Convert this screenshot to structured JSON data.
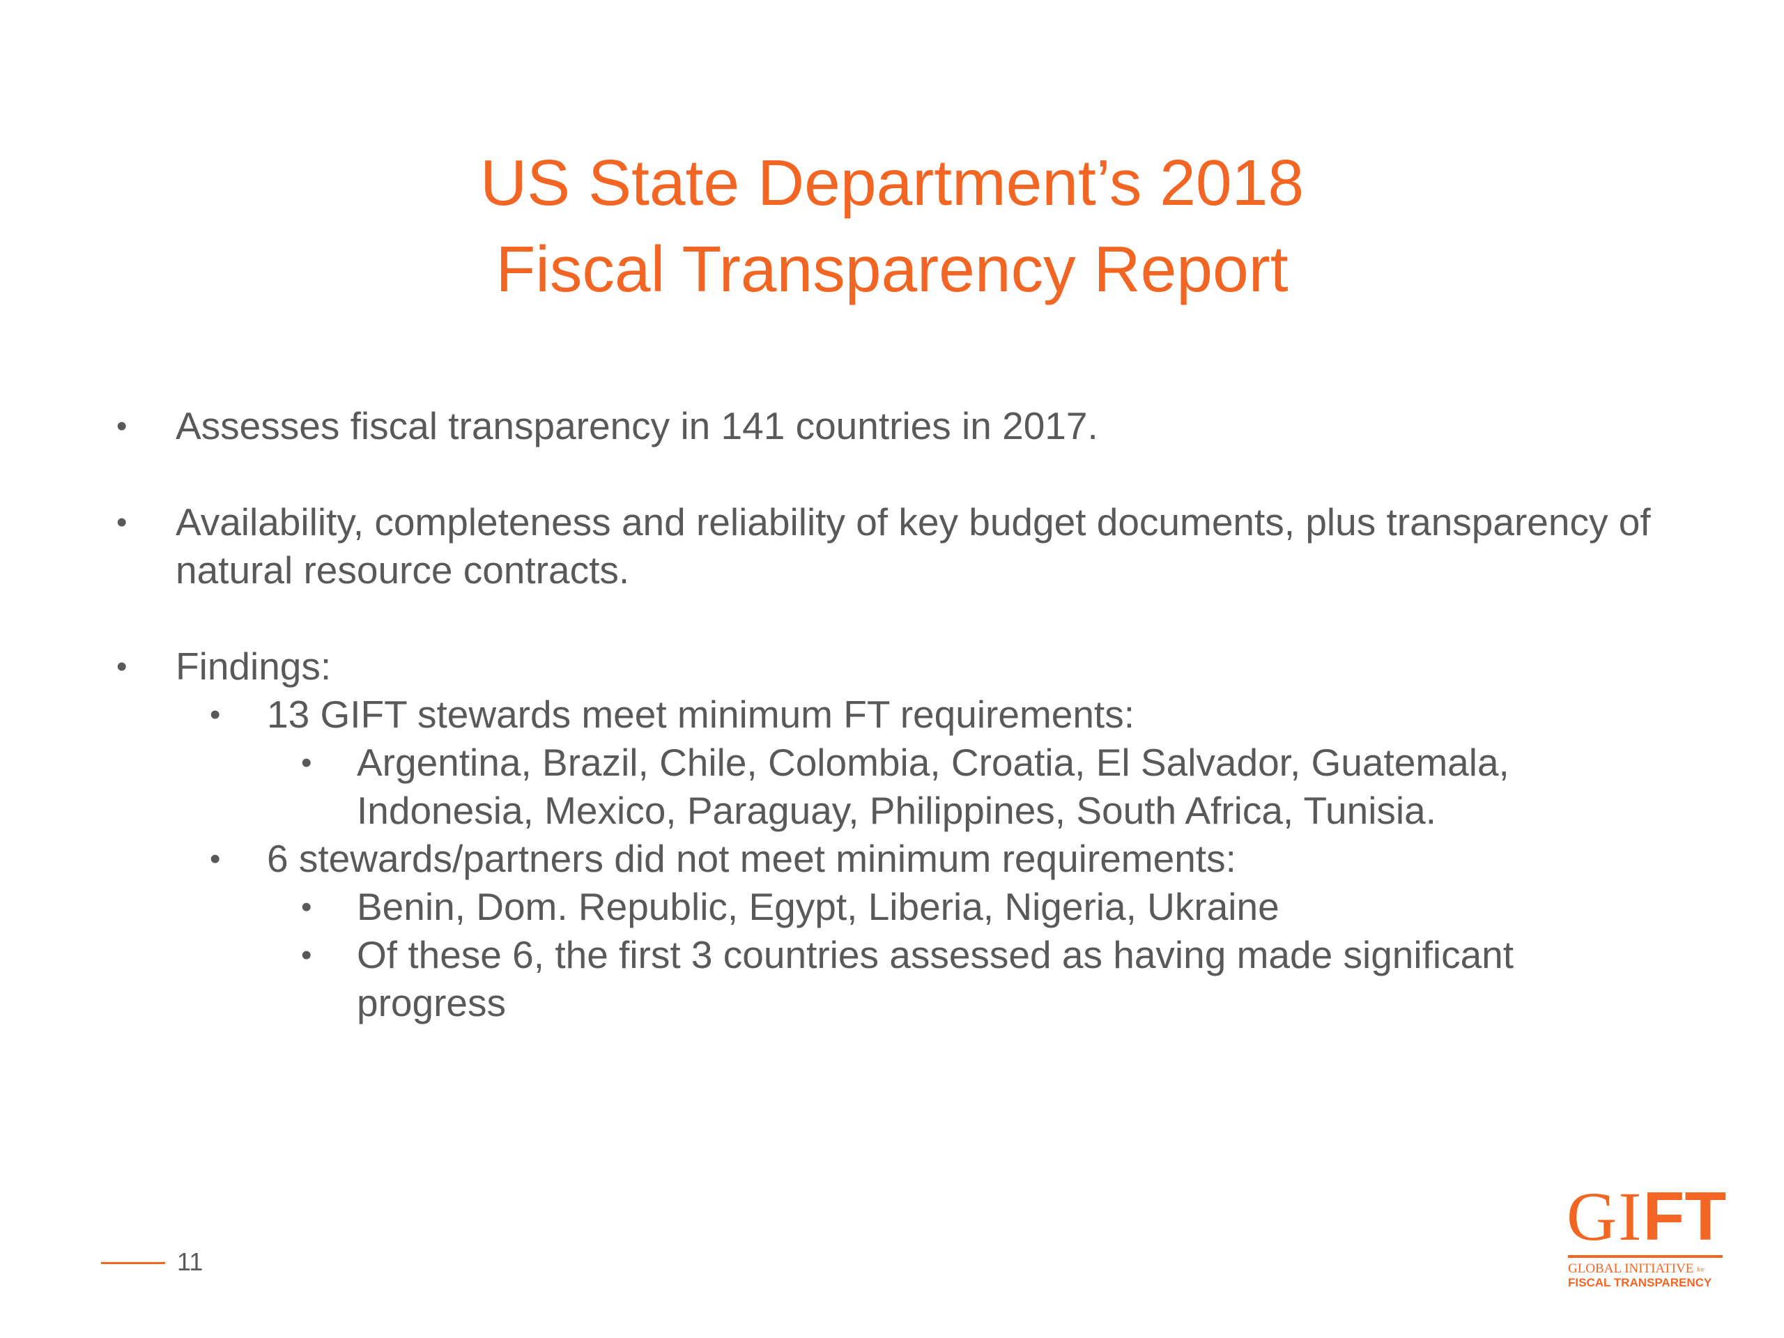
{
  "slide": {
    "title_line1": "US State Department’s 2018",
    "title_line2": "Fiscal Transparency Report",
    "bullet_glyph": "•",
    "bullets": [
      {
        "level": 1,
        "text": "Assesses fiscal transparency in 141 countries in 2017."
      },
      {
        "level": 1,
        "text": "Availability, completeness and reliability of key budget documents, plus transparency of natural resource contracts."
      },
      {
        "level": 1,
        "text": "Findings:"
      },
      {
        "level": 2,
        "text": "13 GIFT stewards meet minimum FT requirements:"
      },
      {
        "level": 3,
        "text": "Argentina, Brazil, Chile, Colombia, Croatia, El Salvador, Guatemala, Indonesia, Mexico, Paraguay, Philippines, South Africa, Tunisia."
      },
      {
        "level": 2,
        "text": "6 stewards/partners did not meet minimum requirements:"
      },
      {
        "level": 3,
        "text": "Benin, Dom. Republic, Egypt, Liberia, Nigeria, Ukraine"
      },
      {
        "level": 3,
        "text": "Of these 6, the first 3 countries assessed as having made significant progress"
      }
    ],
    "page_number": "11"
  },
  "logo": {
    "letters_serif": "GI",
    "letters_bold": "FT",
    "line1": "GLOBAL INITIATIVE",
    "line1_small": "for",
    "line2": "FISCAL TRANSPARENCY"
  },
  "colors": {
    "accent": "#f26522",
    "text": "#58595b",
    "background": "#ffffff"
  }
}
